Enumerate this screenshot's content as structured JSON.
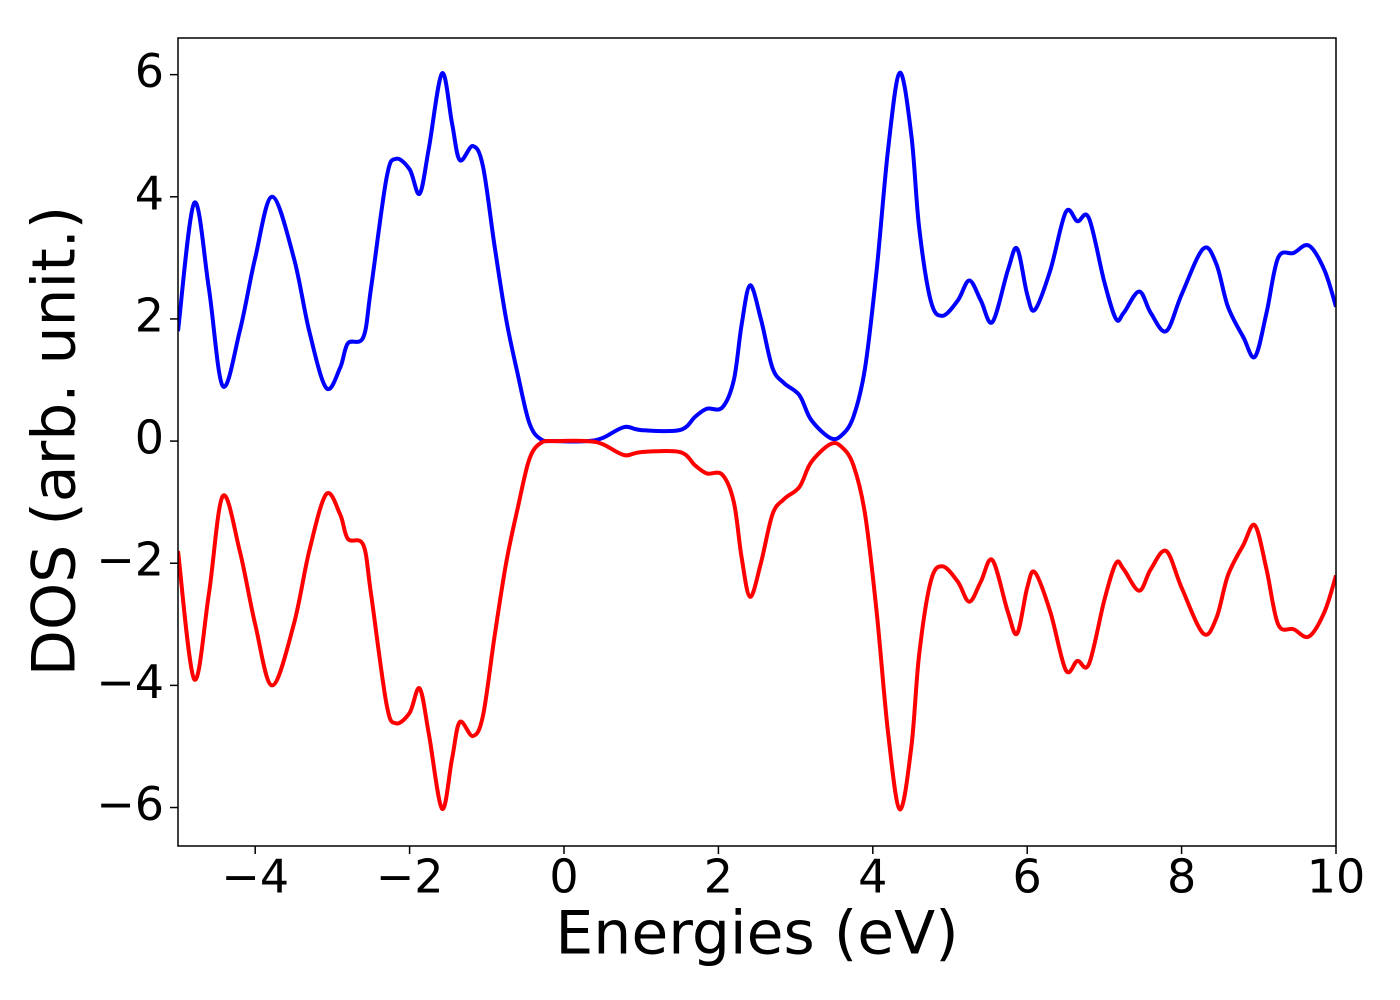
{
  "chart_data": {
    "type": "line",
    "x_label": "Energies (eV)",
    "y_label": "DOS (arb. unit.)",
    "x": [
      -5,
      -4.79,
      -4.6,
      -4.42,
      -4.2,
      -4.0,
      -3.78,
      -3.5,
      -3.3,
      -3.08,
      -2.9,
      -2.8,
      -2.6,
      -2.5,
      -2.3,
      -2.18,
      -2.0,
      -1.87,
      -1.75,
      -1.58,
      -1.45,
      -1.35,
      -1.18,
      -1.05,
      -0.9,
      -0.75,
      -0.6,
      -0.45,
      -0.3,
      -0.1,
      0.3,
      0.5,
      0.78,
      1.0,
      1.5,
      1.7,
      1.85,
      2.05,
      2.2,
      2.3,
      2.41,
      2.55,
      2.7,
      2.85,
      3.05,
      3.2,
      3.45,
      3.6,
      3.75,
      3.9,
      4.05,
      4.2,
      4.35,
      4.5,
      4.6,
      4.75,
      4.9,
      5.1,
      5.25,
      5.4,
      5.55,
      5.75,
      5.87,
      6.0,
      6.1,
      6.3,
      6.5,
      6.65,
      6.8,
      7.0,
      7.15,
      7.25,
      7.45,
      7.6,
      7.8,
      8.0,
      8.28,
      8.45,
      8.6,
      8.8,
      8.95,
      9.1,
      9.25,
      9.45,
      9.65,
      9.85,
      10
    ],
    "series": [
      {
        "color": "#0000ff",
        "values": [
          1.8,
          3.9,
          2.5,
          0.9,
          1.8,
          3.0,
          4.0,
          3.0,
          1.8,
          0.87,
          1.2,
          1.6,
          1.7,
          2.5,
          4.3,
          4.62,
          4.45,
          4.05,
          4.8,
          6.02,
          5.2,
          4.6,
          4.83,
          4.5,
          3.2,
          2.0,
          1.1,
          0.3,
          0.03,
          0,
          0,
          0.05,
          0.23,
          0.18,
          0.18,
          0.4,
          0.53,
          0.55,
          1.0,
          1.9,
          2.55,
          2.0,
          1.2,
          0.95,
          0.75,
          0.35,
          0.05,
          0.1,
          0.4,
          1.2,
          2.8,
          4.8,
          6.03,
          5.0,
          3.5,
          2.3,
          2.05,
          2.3,
          2.63,
          2.3,
          1.95,
          2.8,
          3.15,
          2.4,
          2.15,
          2.8,
          3.75,
          3.6,
          3.65,
          2.6,
          2.0,
          2.1,
          2.45,
          2.1,
          1.8,
          2.4,
          3.15,
          2.9,
          2.2,
          1.7,
          1.38,
          2.1,
          3.0,
          3.08,
          3.2,
          2.8,
          2.2
        ]
      },
      {
        "color": "#ff0000",
        "values": [
          -1.8,
          -3.9,
          -2.5,
          -0.9,
          -1.8,
          -3.0,
          -4.0,
          -3.0,
          -1.8,
          -0.87,
          -1.2,
          -1.6,
          -1.7,
          -2.5,
          -4.3,
          -4.62,
          -4.45,
          -4.05,
          -4.8,
          -6.02,
          -5.2,
          -4.6,
          -4.83,
          -4.5,
          -3.2,
          -2.0,
          -1.1,
          -0.3,
          -0.03,
          0,
          0,
          -0.05,
          -0.23,
          -0.18,
          -0.18,
          -0.4,
          -0.53,
          -0.55,
          -1.0,
          -1.9,
          -2.55,
          -2.0,
          -1.2,
          -0.95,
          -0.75,
          -0.35,
          -0.05,
          -0.1,
          -0.4,
          -1.2,
          -2.8,
          -4.8,
          -6.03,
          -5.0,
          -3.5,
          -2.3,
          -2.05,
          -2.3,
          -2.63,
          -2.3,
          -1.95,
          -2.8,
          -3.15,
          -2.4,
          -2.15,
          -2.8,
          -3.75,
          -3.6,
          -3.65,
          -2.6,
          -2.0,
          -2.1,
          -2.45,
          -2.1,
          -1.8,
          -2.4,
          -3.15,
          -2.9,
          -2.2,
          -1.7,
          -1.38,
          -2.1,
          -3.0,
          -3.08,
          -3.2,
          -2.8,
          -2.2
        ]
      }
    ],
    "xlim": [
      -5,
      10
    ],
    "ylim": [
      -6.63,
      6.6
    ],
    "xticks": [
      {
        "value": -4,
        "label": "−4"
      },
      {
        "value": -2,
        "label": "−2"
      },
      0,
      2,
      4,
      6,
      8,
      10
    ],
    "yticks": [
      {
        "value": -6,
        "label": "−6"
      },
      {
        "value": -4,
        "label": "−4"
      },
      {
        "value": -2,
        "label": "−2"
      },
      0,
      2,
      4,
      6
    ],
    "grid": false
  }
}
